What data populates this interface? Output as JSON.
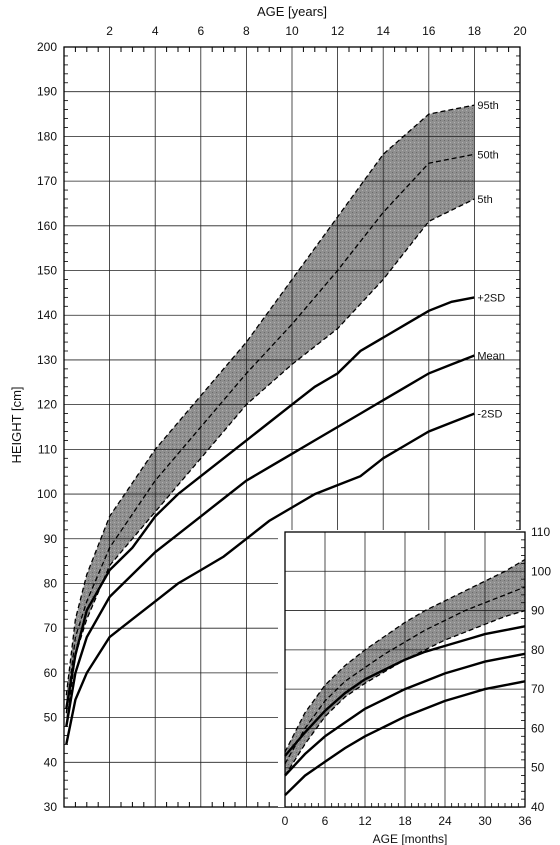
{
  "chart_data": [
    {
      "type": "line",
      "title": "",
      "xlabel": "AGE [years]",
      "ylabel": "HEIGHT  [cm]",
      "xlim": [
        0,
        20
      ],
      "ylim": [
        30,
        200
      ],
      "x_ticks": [
        2,
        4,
        6,
        8,
        10,
        12,
        14,
        16,
        18,
        20
      ],
      "y_ticks": [
        30,
        40,
        50,
        60,
        70,
        80,
        90,
        100,
        110,
        120,
        130,
        140,
        150,
        160,
        170,
        180,
        190,
        200
      ],
      "grid": true,
      "band": {
        "label_upper": "95th",
        "label_lower": "5th",
        "x": [
          0.1,
          0.5,
          1,
          2,
          4,
          6,
          8,
          10,
          12,
          14,
          16,
          18
        ],
        "upper": [
          55,
          72,
          82,
          95,
          110,
          122,
          134,
          148,
          162,
          176,
          185,
          187
        ],
        "lower": [
          48,
          64,
          72,
          84,
          96,
          108,
          120,
          129,
          137,
          148,
          161,
          166
        ]
      },
      "series": [
        {
          "name": "50th",
          "style": "dashed",
          "x": [
            0.1,
            0.5,
            1,
            2,
            4,
            6,
            8,
            10,
            12,
            14,
            16,
            18
          ],
          "y": [
            51,
            68,
            76,
            88,
            103,
            115,
            127,
            138,
            150,
            163,
            174,
            176
          ]
        },
        {
          "name": "+2SD",
          "style": "solid",
          "x": [
            0.1,
            0.5,
            1,
            2,
            3,
            4,
            5,
            6,
            7,
            8,
            9,
            10,
            11,
            12,
            13,
            14,
            15,
            16,
            17,
            18
          ],
          "y": [
            52,
            64,
            74,
            83,
            88,
            95,
            100,
            104,
            108,
            112,
            116,
            120,
            124,
            127,
            132,
            135,
            138,
            141,
            143,
            144
          ]
        },
        {
          "name": "Mean",
          "style": "solid",
          "x": [
            0.1,
            0.5,
            1,
            2,
            3,
            4,
            5,
            6,
            7,
            8,
            9,
            10,
            11,
            12,
            13,
            14,
            15,
            16,
            17,
            18
          ],
          "y": [
            48,
            60,
            68,
            77,
            82,
            87,
            91,
            95,
            99,
            103,
            106,
            109,
            112,
            115,
            118,
            121,
            124,
            127,
            129,
            131
          ]
        },
        {
          "name": "-2SD",
          "style": "solid",
          "x": [
            0.1,
            0.5,
            1,
            2,
            3,
            4,
            5,
            6,
            7,
            8,
            9,
            10,
            11,
            12,
            13,
            14,
            15,
            16,
            17,
            18
          ],
          "y": [
            44,
            54,
            60,
            68,
            72,
            76,
            80,
            83,
            86,
            90,
            94,
            97,
            100,
            102,
            104,
            108,
            111,
            114,
            116,
            118
          ]
        }
      ]
    },
    {
      "type": "line",
      "title": "",
      "xlabel": "AGE  [months]",
      "ylabel": "",
      "xlim": [
        0,
        36
      ],
      "ylim": [
        40,
        110
      ],
      "x_ticks": [
        0,
        6,
        12,
        18,
        24,
        30,
        36
      ],
      "y_ticks": [
        40,
        50,
        60,
        70,
        80,
        90,
        100,
        110
      ],
      "grid": true,
      "band": {
        "x": [
          0,
          3,
          6,
          9,
          12,
          15,
          18,
          21,
          24,
          27,
          30,
          33,
          36
        ],
        "upper": [
          54,
          64,
          71,
          76,
          80,
          83.5,
          87,
          90,
          92.5,
          95,
          97.5,
          100,
          103
        ],
        "lower": [
          48,
          56,
          63,
          68,
          71.5,
          74.5,
          77.5,
          80,
          82.5,
          84.5,
          86.5,
          88.5,
          90
        ]
      },
      "series": [
        {
          "name": "50th",
          "style": "dashed",
          "x": [
            0,
            3,
            6,
            9,
            12,
            15,
            18,
            21,
            24,
            27,
            30,
            33,
            36
          ],
          "y": [
            51,
            60,
            67,
            72,
            75.5,
            79,
            82,
            85,
            87.5,
            90,
            92,
            94,
            96
          ]
        },
        {
          "name": "+2SD",
          "style": "solid",
          "x": [
            0,
            3,
            6,
            9,
            12,
            15,
            18,
            21,
            24,
            27,
            30,
            33,
            36
          ],
          "y": [
            53,
            59,
            64.5,
            69,
            72.5,
            75,
            77.5,
            79.5,
            81,
            82.5,
            84,
            85,
            86
          ]
        },
        {
          "name": "Mean",
          "style": "solid",
          "x": [
            0,
            3,
            6,
            9,
            12,
            15,
            18,
            21,
            24,
            27,
            30,
            33,
            36
          ],
          "y": [
            48,
            53.5,
            58,
            61.5,
            65,
            67.5,
            70,
            72,
            74,
            75.5,
            77,
            78,
            79
          ]
        },
        {
          "name": "-2SD",
          "style": "solid",
          "x": [
            0,
            3,
            6,
            9,
            12,
            15,
            18,
            21,
            24,
            27,
            30,
            33,
            36
          ],
          "y": [
            43,
            48,
            51.5,
            55,
            58,
            60.5,
            63,
            65,
            67,
            68.5,
            70,
            71,
            72
          ]
        }
      ]
    }
  ]
}
